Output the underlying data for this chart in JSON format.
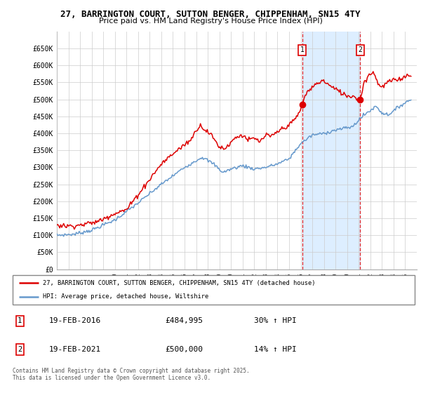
{
  "title_line1": "27, BARRINGTON COURT, SUTTON BENGER, CHIPPENHAM, SN15 4TY",
  "title_line2": "Price paid vs. HM Land Registry's House Price Index (HPI)",
  "legend_line1": "27, BARRINGTON COURT, SUTTON BENGER, CHIPPENHAM, SN15 4TY (detached house)",
  "legend_line2": "HPI: Average price, detached house, Wiltshire",
  "footnote": "Contains HM Land Registry data © Crown copyright and database right 2025.\nThis data is licensed under the Open Government Licence v3.0.",
  "property_color": "#dd0000",
  "hpi_color": "#6699cc",
  "shade_color": "#ddeeff",
  "marker1_date": "19-FEB-2016",
  "marker1_price": "£484,995",
  "marker1_hpi": "30% ↑ HPI",
  "marker2_date": "19-FEB-2021",
  "marker2_price": "£500,000",
  "marker2_hpi": "14% ↑ HPI",
  "ylim_min": 0,
  "ylim_max": 700000,
  "yticks": [
    0,
    50000,
    100000,
    150000,
    200000,
    250000,
    300000,
    350000,
    400000,
    450000,
    500000,
    550000,
    600000,
    650000
  ],
  "ytick_labels": [
    "£0",
    "£50K",
    "£100K",
    "£150K",
    "£200K",
    "£250K",
    "£300K",
    "£350K",
    "£400K",
    "£450K",
    "£500K",
    "£550K",
    "£600K",
    "£650K"
  ],
  "xmin": 1995,
  "xmax": 2026,
  "sale1_year": 2016.13,
  "sale1_price": 484995,
  "sale2_year": 2021.13,
  "sale2_price": 500000
}
